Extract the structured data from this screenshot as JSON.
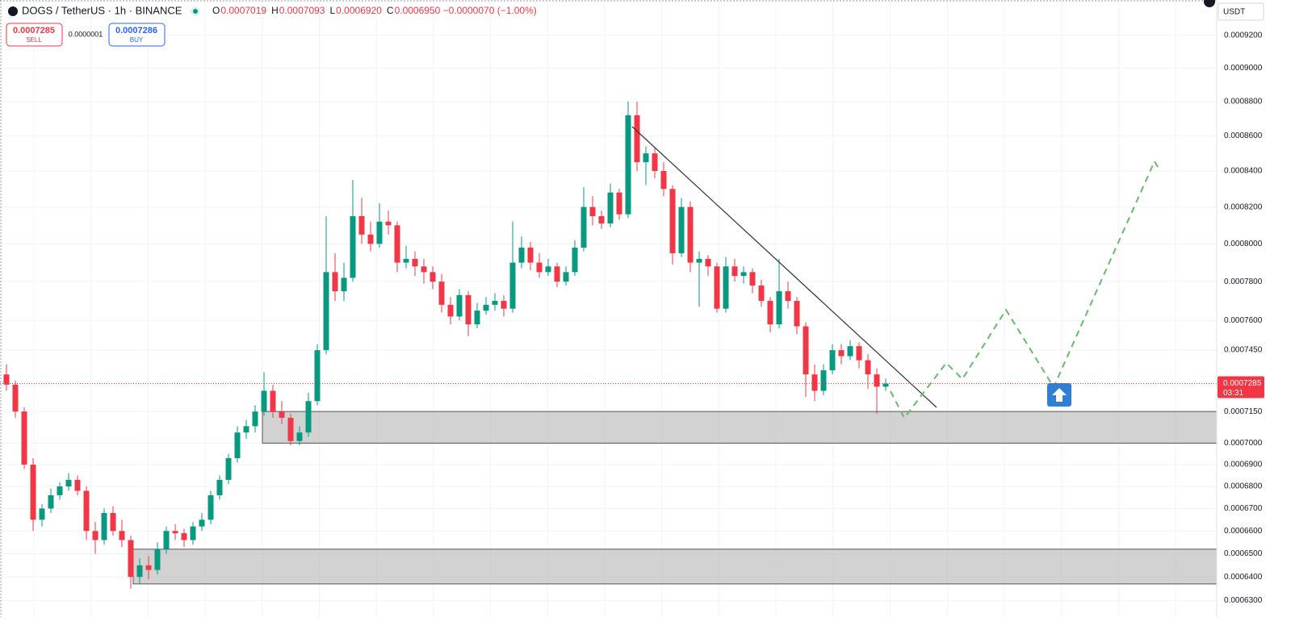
{
  "chart_data": {
    "type": "candlestick",
    "symbol": "DOGS / TetherUS · 1h · BINANCE",
    "ohlc_header": [
      {
        "key": "O",
        "text": "0.0007019"
      },
      {
        "key": "H",
        "text": "0.0007093"
      },
      {
        "key": "L",
        "text": "0.0006920"
      },
      {
        "key": "C",
        "text": "0.0006950 −0.0000070 (−1.00%)"
      }
    ],
    "currency": "USDT",
    "last_price_label": "0.0007285",
    "countdown": "03:31",
    "log_scale": true,
    "grid": true,
    "up_color": "#089981",
    "down_color": "#f23645",
    "ylim": [
      0.000623,
      0.000942
    ],
    "yticks": [
      {
        "value": 0.00092,
        "label": "0.0009200"
      },
      {
        "value": 0.0009,
        "label": "0.0009000"
      },
      {
        "value": 0.00088,
        "label": "0.0008800"
      },
      {
        "value": 0.00086,
        "label": "0.0008600"
      },
      {
        "value": 0.00084,
        "label": "0.0008400"
      },
      {
        "value": 0.00082,
        "label": "0.0008200"
      },
      {
        "value": 0.0008,
        "label": "0.0008000"
      },
      {
        "value": 0.00078,
        "label": "0.0007800"
      },
      {
        "value": 0.00076,
        "label": "0.0007600"
      },
      {
        "value": 0.000745,
        "label": "0.0007450"
      },
      {
        "value": 0.000715,
        "label": "0.0007150"
      },
      {
        "value": 0.0007,
        "label": "0.0007000"
      },
      {
        "value": 0.00069,
        "label": "0.0006900"
      },
      {
        "value": 0.00068,
        "label": "0.0006800"
      },
      {
        "value": 0.00067,
        "label": "0.0006700"
      },
      {
        "value": 0.00066,
        "label": "0.0006600"
      },
      {
        "value": 0.00065,
        "label": "0.0006500"
      },
      {
        "value": 0.00064,
        "label": "0.0006400"
      },
      {
        "value": 0.00063,
        "label": "0.0006300"
      }
    ],
    "zones": [
      {
        "top": 0.000715,
        "bottom": 0.0007
      },
      {
        "top": 0.000652,
        "bottom": 0.000637
      }
    ],
    "candles": [
      [
        0.000733,
        0.000738,
        0.000725,
        0.000728
      ],
      [
        0.000728,
        0.00073,
        0.000712,
        0.000715
      ],
      [
        0.000715,
        0.000717,
        0.000688,
        0.00069
      ],
      [
        0.00069,
        0.000693,
        0.00066,
        0.000665
      ],
      [
        0.000665,
        0.000672,
        0.000662,
        0.00067
      ],
      [
        0.00067,
        0.000679,
        0.000668,
        0.000676
      ],
      [
        0.000676,
        0.000682,
        0.000674,
        0.00068
      ],
      [
        0.00068,
        0.000686,
        0.000678,
        0.000683
      ],
      [
        0.000683,
        0.000685,
        0.000676,
        0.000678
      ],
      [
        0.000678,
        0.00068,
        0.000656,
        0.00066
      ],
      [
        0.00066,
        0.000664,
        0.00065,
        0.000656
      ],
      [
        0.000656,
        0.00067,
        0.000654,
        0.000668
      ],
      [
        0.000668,
        0.000671,
        0.000658,
        0.00066
      ],
      [
        0.00066,
        0.000665,
        0.000653,
        0.000656
      ],
      [
        0.000656,
        0.000658,
        0.000635,
        0.00064
      ],
      [
        0.00064,
        0.000648,
        0.000637,
        0.000645
      ],
      [
        0.000645,
        0.000649,
        0.000639,
        0.000643
      ],
      [
        0.000643,
        0.000655,
        0.000641,
        0.000652
      ],
      [
        0.000652,
        0.000662,
        0.00065,
        0.00066
      ],
      [
        0.00066,
        0.000663,
        0.000656,
        0.000659
      ],
      [
        0.000659,
        0.000661,
        0.000653,
        0.000656
      ],
      [
        0.000656,
        0.000664,
        0.000654,
        0.000662
      ],
      [
        0.000662,
        0.000668,
        0.00066,
        0.000665
      ],
      [
        0.000665,
        0.000678,
        0.000663,
        0.000676
      ],
      [
        0.000676,
        0.000685,
        0.000674,
        0.000683
      ],
      [
        0.000683,
        0.000695,
        0.000681,
        0.000693
      ],
      [
        0.000693,
        0.000708,
        0.000691,
        0.000705
      ],
      [
        0.000705,
        0.000711,
        0.000702,
        0.000708
      ],
      [
        0.000708,
        0.000718,
        0.000705,
        0.000715
      ],
      [
        0.000715,
        0.000734,
        0.000713,
        0.000725
      ],
      [
        0.000725,
        0.000728,
        0.000712,
        0.000715
      ],
      [
        0.000715,
        0.00072,
        0.000709,
        0.000712
      ],
      [
        0.000712,
        0.000714,
        0.000699,
        0.000701
      ],
      [
        0.000701,
        0.000708,
        0.000699,
        0.000705
      ],
      [
        0.000705,
        0.000724,
        0.000703,
        0.00072
      ],
      [
        0.00072,
        0.000748,
        0.000718,
        0.000745
      ],
      [
        0.000745,
        0.000815,
        0.000743,
        0.000785
      ],
      [
        0.000785,
        0.000795,
        0.00077,
        0.000775
      ],
      [
        0.000775,
        0.00079,
        0.00077,
        0.000782
      ],
      [
        0.000782,
        0.000835,
        0.00078,
        0.000815
      ],
      [
        0.000815,
        0.000825,
        0.0008,
        0.000805
      ],
      [
        0.000805,
        0.000812,
        0.000796,
        0.0008
      ],
      [
        0.0008,
        0.000822,
        0.000798,
        0.000812
      ],
      [
        0.000812,
        0.000818,
        0.000805,
        0.00081
      ],
      [
        0.00081,
        0.000812,
        0.000785,
        0.00079
      ],
      [
        0.00079,
        0.000799,
        0.000787,
        0.000792
      ],
      [
        0.000792,
        0.000796,
        0.000783,
        0.000788
      ],
      [
        0.000788,
        0.000792,
        0.000779,
        0.000785
      ],
      [
        0.000785,
        0.000788,
        0.000776,
        0.00078
      ],
      [
        0.00078,
        0.000784,
        0.000764,
        0.000768
      ],
      [
        0.000768,
        0.000772,
        0.000758,
        0.000762
      ],
      [
        0.000762,
        0.000776,
        0.00076,
        0.000773
      ],
      [
        0.000773,
        0.000775,
        0.000752,
        0.000758
      ],
      [
        0.000758,
        0.000769,
        0.000756,
        0.000765
      ],
      [
        0.000765,
        0.000772,
        0.000763,
        0.000768
      ],
      [
        0.000768,
        0.000774,
        0.000765,
        0.00077
      ],
      [
        0.00077,
        0.000773,
        0.000762,
        0.000766
      ],
      [
        0.000766,
        0.000812,
        0.000764,
        0.00079
      ],
      [
        0.00079,
        0.000804,
        0.000787,
        0.000798
      ],
      [
        0.000798,
        0.000801,
        0.000786,
        0.00079
      ],
      [
        0.00079,
        0.000795,
        0.000782,
        0.000785
      ],
      [
        0.000785,
        0.000792,
        0.000783,
        0.000788
      ],
      [
        0.000788,
        0.00079,
        0.000777,
        0.00078
      ],
      [
        0.00078,
        0.000788,
        0.000778,
        0.000785
      ],
      [
        0.000785,
        0.000802,
        0.000783,
        0.000798
      ],
      [
        0.000798,
        0.000831,
        0.000796,
        0.00082
      ],
      [
        0.00082,
        0.000826,
        0.00081,
        0.000815
      ],
      [
        0.000815,
        0.000818,
        0.000808,
        0.000811
      ],
      [
        0.000811,
        0.000833,
        0.000809,
        0.000828
      ],
      [
        0.000828,
        0.00083,
        0.000813,
        0.000816
      ],
      [
        0.000816,
        0.00088,
        0.000814,
        0.000872
      ],
      [
        0.000872,
        0.00088,
        0.00084,
        0.000845
      ],
      [
        0.000845,
        0.000854,
        0.000832,
        0.00085
      ],
      [
        0.00085,
        0.000853,
        0.000836,
        0.00084
      ],
      [
        0.00084,
        0.000845,
        0.000826,
        0.00083
      ],
      [
        0.00083,
        0.000832,
        0.000789,
        0.000795
      ],
      [
        0.000795,
        0.000825,
        0.000793,
        0.00082
      ],
      [
        0.00082,
        0.000823,
        0.000785,
        0.00079
      ],
      [
        0.00079,
        0.000796,
        0.000767,
        0.000792
      ],
      [
        0.000792,
        0.000794,
        0.000783,
        0.000788
      ],
      [
        0.000788,
        0.00079,
        0.000764,
        0.000766
      ],
      [
        0.000766,
        0.000793,
        0.000764,
        0.000788
      ],
      [
        0.000788,
        0.000792,
        0.00078,
        0.000783
      ],
      [
        0.000783,
        0.000788,
        0.000779,
        0.000785
      ],
      [
        0.000785,
        0.000787,
        0.000774,
        0.000778
      ],
      [
        0.000778,
        0.000781,
        0.000767,
        0.00077
      ],
      [
        0.00077,
        0.000772,
        0.000754,
        0.000758
      ],
      [
        0.000758,
        0.000792,
        0.000756,
        0.000775
      ],
      [
        0.000775,
        0.00078,
        0.000766,
        0.00077
      ],
      [
        0.00077,
        0.000772,
        0.000753,
        0.000757
      ],
      [
        0.000757,
        0.000759,
        0.000722,
        0.000733
      ],
      [
        0.000733,
        0.000738,
        0.00072,
        0.000725
      ],
      [
        0.000725,
        0.000738,
        0.000723,
        0.000735
      ],
      [
        0.000735,
        0.000748,
        0.000733,
        0.000745
      ],
      [
        0.000745,
        0.000748,
        0.000738,
        0.000742
      ],
      [
        0.000742,
        0.00075,
        0.00074,
        0.000747
      ],
      [
        0.000747,
        0.000749,
        0.000736,
        0.00074
      ],
      [
        0.00074,
        0.000743,
        0.000726,
        0.000733
      ],
      [
        0.000733,
        0.000736,
        0.000714,
        0.000727
      ],
      [
        0.000727,
        0.000731,
        0.000725,
        0.0007285
      ]
    ]
  },
  "trade_panel": {
    "sell_price": "0.0007285",
    "sell_label": "SELL",
    "spread": "0.0000001",
    "buy_price": "0.0007286",
    "buy_label": "BUY"
  }
}
